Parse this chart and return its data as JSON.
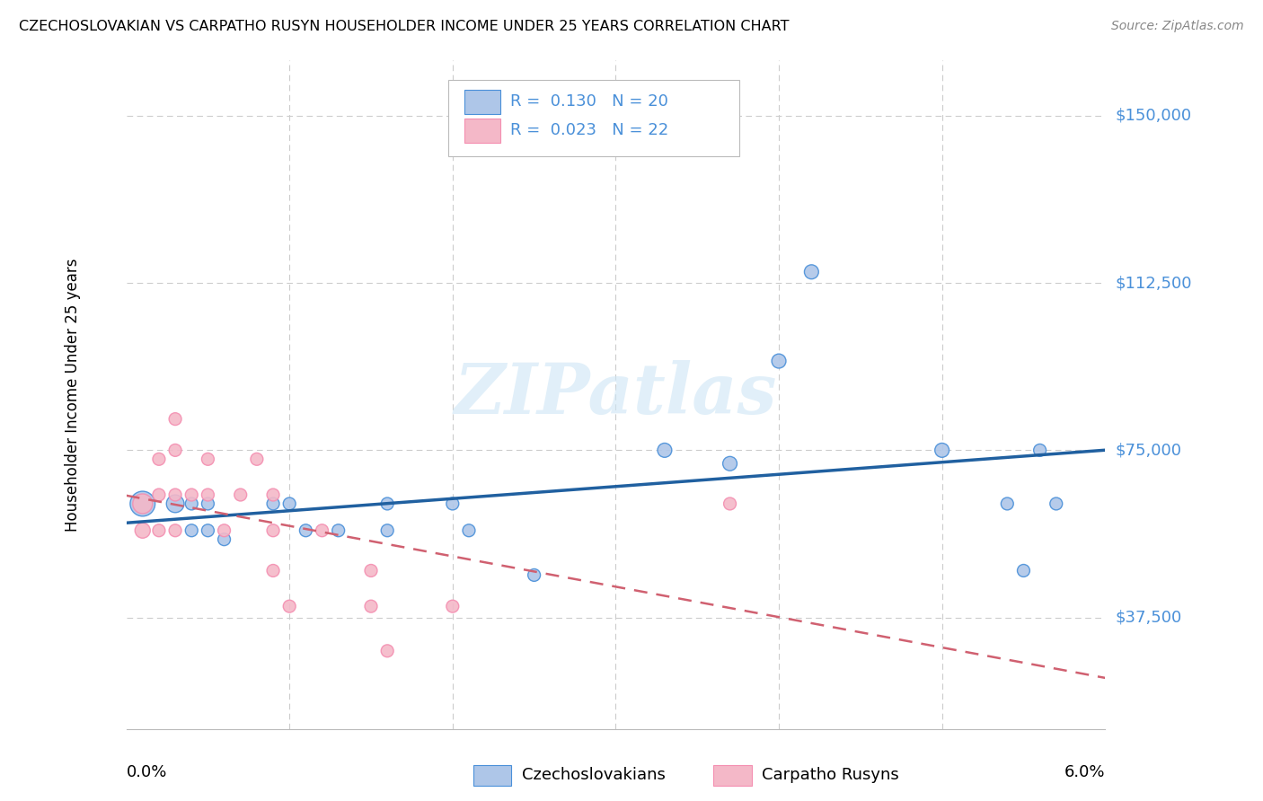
{
  "title": "CZECHOSLOVAKIAN VS CARPATHO RUSYN HOUSEHOLDER INCOME UNDER 25 YEARS CORRELATION CHART",
  "source": "Source: ZipAtlas.com",
  "ylabel": "Householder Income Under 25 years",
  "xmin": 0.0,
  "xmax": 0.06,
  "ymin": 12500,
  "ymax": 162500,
  "yticks": [
    37500,
    75000,
    112500,
    150000
  ],
  "ytick_labels": [
    "$37,500",
    "$75,000",
    "$112,500",
    "$150,000"
  ],
  "legend_color1": "#aec6e8",
  "legend_color2": "#f4b8c8",
  "blue_color": "#4a90d9",
  "pink_color": "#f48fb1",
  "line_blue": "#2060a0",
  "line_pink": "#d06070",
  "watermark": "ZIPatlas",
  "czecho_points": [
    [
      0.001,
      63000
    ],
    [
      0.003,
      63000
    ],
    [
      0.004,
      63000
    ],
    [
      0.004,
      57000
    ],
    [
      0.005,
      63000
    ],
    [
      0.005,
      57000
    ],
    [
      0.006,
      55000
    ],
    [
      0.009,
      63000
    ],
    [
      0.01,
      63000
    ],
    [
      0.011,
      57000
    ],
    [
      0.013,
      57000
    ],
    [
      0.016,
      63000
    ],
    [
      0.016,
      57000
    ],
    [
      0.02,
      63000
    ],
    [
      0.021,
      57000
    ],
    [
      0.025,
      47000
    ],
    [
      0.033,
      75000
    ],
    [
      0.037,
      72000
    ],
    [
      0.04,
      95000
    ],
    [
      0.042,
      115000
    ],
    [
      0.05,
      75000
    ],
    [
      0.054,
      63000
    ],
    [
      0.055,
      48000
    ],
    [
      0.056,
      75000
    ],
    [
      0.057,
      63000
    ]
  ],
  "rusyn_points": [
    [
      0.001,
      63000
    ],
    [
      0.001,
      57000
    ],
    [
      0.002,
      73000
    ],
    [
      0.002,
      65000
    ],
    [
      0.002,
      57000
    ],
    [
      0.003,
      82000
    ],
    [
      0.003,
      75000
    ],
    [
      0.003,
      65000
    ],
    [
      0.003,
      57000
    ],
    [
      0.004,
      65000
    ],
    [
      0.005,
      73000
    ],
    [
      0.005,
      65000
    ],
    [
      0.006,
      57000
    ],
    [
      0.007,
      65000
    ],
    [
      0.008,
      73000
    ],
    [
      0.009,
      65000
    ],
    [
      0.009,
      57000
    ],
    [
      0.009,
      48000
    ],
    [
      0.01,
      40000
    ],
    [
      0.012,
      57000
    ],
    [
      0.015,
      48000
    ],
    [
      0.015,
      40000
    ],
    [
      0.016,
      30000
    ],
    [
      0.02,
      40000
    ],
    [
      0.037,
      63000
    ]
  ],
  "czecho_sizes": [
    400,
    200,
    100,
    100,
    100,
    100,
    100,
    100,
    100,
    100,
    100,
    100,
    100,
    100,
    100,
    100,
    130,
    130,
    130,
    130,
    130,
    100,
    100,
    100,
    100
  ],
  "rusyn_sizes": [
    250,
    150,
    100,
    100,
    100,
    100,
    100,
    100,
    100,
    100,
    100,
    100,
    100,
    100,
    100,
    100,
    100,
    100,
    100,
    100,
    100,
    100,
    100,
    100,
    100
  ]
}
